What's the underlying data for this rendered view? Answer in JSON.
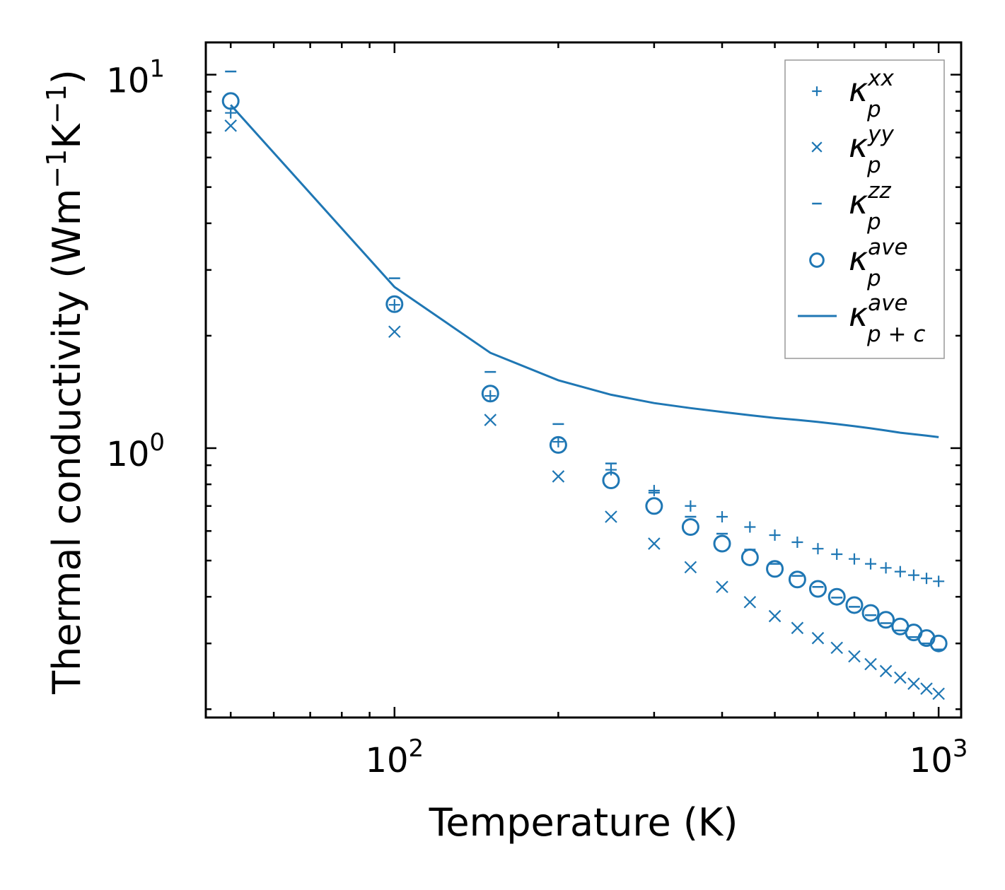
{
  "chart_data": {
    "type": "scatter",
    "title": "",
    "xlabel": "Temperature (K)",
    "ylabel_text": "Thermal conductivity (Wm",
    "ylabel_unit_m": "−1",
    "ylabel_unit_K": "K",
    "ylabel_unit_K_exp": "−1",
    "ylabel_close": ")",
    "xscale": "log",
    "yscale": "log",
    "xlim": [
      45,
      1100
    ],
    "ylim": [
      0.19,
      12.2
    ],
    "x_major_ticks": [
      {
        "value": 100,
        "base": "10",
        "exp": "2"
      },
      {
        "value": 1000,
        "base": "10",
        "exp": "3"
      }
    ],
    "y_major_ticks": [
      {
        "value": 1,
        "base": "10",
        "exp": "0"
      },
      {
        "value": 10,
        "base": "10",
        "exp": "1"
      }
    ],
    "color": "#1f77b4",
    "x": [
      50,
      100,
      150,
      200,
      250,
      300,
      350,
      400,
      450,
      500,
      550,
      600,
      650,
      700,
      750,
      800,
      850,
      900,
      950,
      1000
    ],
    "series": [
      {
        "name": "kxx",
        "label_base": "κ",
        "label_sub": "p",
        "label_sup": "xx",
        "marker": "plus",
        "values": [
          7.9,
          2.42,
          1.38,
          1.04,
          0.875,
          0.77,
          0.7,
          0.655,
          0.615,
          0.585,
          0.56,
          0.538,
          0.52,
          0.505,
          0.49,
          0.478,
          0.467,
          0.457,
          0.448,
          0.44
        ]
      },
      {
        "name": "kyy",
        "label_base": "κ",
        "label_sub": "p",
        "label_sup": "yy",
        "marker": "x",
        "values": [
          7.3,
          2.05,
          1.19,
          0.84,
          0.655,
          0.555,
          0.48,
          0.425,
          0.387,
          0.355,
          0.33,
          0.31,
          0.292,
          0.277,
          0.264,
          0.253,
          0.243,
          0.234,
          0.227,
          0.22
        ]
      },
      {
        "name": "kzz",
        "label_base": "κ",
        "label_sub": "p",
        "label_sup": "zz",
        "marker": "dash",
        "values": [
          10.2,
          2.85,
          1.6,
          1.16,
          0.91,
          0.76,
          0.655,
          0.59,
          0.535,
          0.49,
          0.455,
          0.425,
          0.398,
          0.376,
          0.357,
          0.34,
          0.325,
          0.312,
          0.3,
          0.289
        ]
      },
      {
        "name": "kave",
        "label_base": "κ",
        "label_sub": "p",
        "label_sup": "ave",
        "marker": "circle",
        "values": [
          8.5,
          2.43,
          1.4,
          1.02,
          0.82,
          0.7,
          0.615,
          0.555,
          0.51,
          0.475,
          0.445,
          0.42,
          0.4,
          0.38,
          0.362,
          0.347,
          0.333,
          0.321,
          0.31,
          0.3
        ]
      },
      {
        "name": "kpc",
        "label_base": "κ",
        "label_sub": "p + c",
        "label_sup": "ave",
        "marker": "line",
        "values": [
          8.3,
          2.7,
          1.8,
          1.52,
          1.39,
          1.32,
          1.28,
          1.25,
          1.225,
          1.205,
          1.19,
          1.175,
          1.16,
          1.145,
          1.13,
          1.115,
          1.1,
          1.09,
          1.08,
          1.07
        ]
      }
    ],
    "legend_position": "top-right",
    "grid": false
  }
}
